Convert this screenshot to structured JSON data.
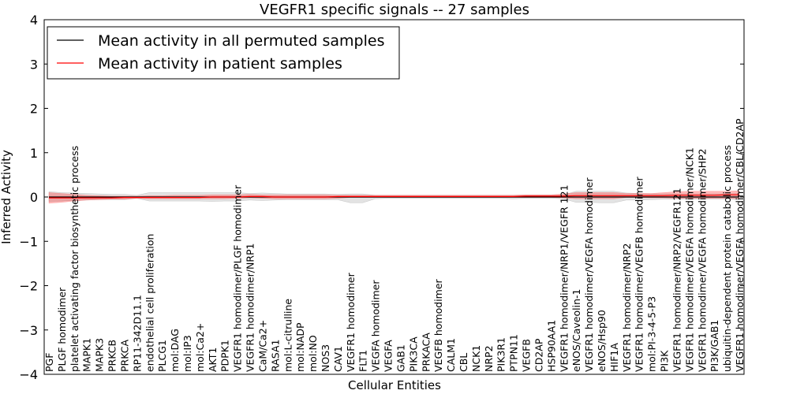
{
  "chart_data": {
    "type": "line",
    "title": "VEGFR1 specific signals -- 27 samples",
    "xlabel": "Cellular Entities",
    "ylabel": "Inferred Activity",
    "ylim": [
      -4,
      4
    ],
    "yticks": [
      -4,
      -3,
      -2,
      -1,
      0,
      1,
      2,
      3,
      4
    ],
    "ytick_labels": [
      "−4",
      "−3",
      "−2",
      "−1",
      "0",
      "1",
      "2",
      "3",
      "4"
    ],
    "grid": false,
    "legend_position": "top-left",
    "categories": [
      "PGF",
      "PLGF homodimer",
      "platelet activating factor biosynthetic process",
      "MAPK1",
      "MAPK3",
      "PRKCB",
      "PRKCA",
      "RP11-342D11.1",
      "endothelial cell proliferation",
      "PLCG1",
      "mol:DAG",
      "mol:IP3",
      "mol:Ca2+",
      "AKT1",
      "PDPK1",
      "VEGFR1 homodimer/PLGF homodimer",
      "VEGFR1 homodimer/NRP1",
      "CaM/Ca2+",
      "RASA1",
      "mol:L-citrulline",
      "mol:NADP",
      "mol:NO",
      "NOS3",
      "CAV1",
      "VEGFR1 homodimer",
      "FLT1",
      "VEGFA homodimer",
      "VEGFA",
      "GAB1",
      "PIK3CA",
      "PRKACA",
      "VEGFB homodimer",
      "CALM1",
      "CBL",
      "NCK1",
      "NRP2",
      "PIK3R1",
      "PTPN11",
      "VEGFB",
      "CD2AP",
      "HSP90AA1",
      "VEGFR1 homodimer/NRP1/VEGFR 121",
      "eNOS/Caveolin-1",
      "VEGFR1 homodimer/VEGFA homodimer",
      "eNOS/Hsp90",
      "HIF1A",
      "VEGFR1 homodimer/NRP2",
      "VEGFR1 homodimer/VEGFB homodimer",
      "mol:PI-3-4-5-P3",
      "PI3K",
      "VEGFR1 homodimer/NRP2/VEGFR121",
      "VEGFR1 homodimer/VEGFA homodimer/NCK1",
      "VEGFR1 homodimer/VEGFA homodimer/SHP2",
      "PI3K/GAB1",
      "ubiquitin-dependent protein catabolic process",
      "VEGFR1 homodimer/VEGFA homodimer/CBL/CD2AP"
    ],
    "series": [
      {
        "name": "Mean activity in all permuted samples",
        "color": "#000000",
        "values": [
          0,
          0,
          0,
          0,
          0,
          0,
          0,
          0,
          0,
          0,
          0,
          0,
          0,
          0,
          0,
          0,
          0,
          0,
          0,
          0,
          0,
          0,
          0,
          0,
          0,
          0,
          0,
          0,
          0,
          0,
          0,
          0,
          0,
          0,
          0,
          0,
          0,
          0,
          0,
          0,
          0,
          0,
          0,
          0,
          0,
          0,
          0,
          0,
          0,
          0,
          0,
          0,
          0,
          0,
          0,
          0
        ],
        "band_lower": [
          -0.1,
          -0.09,
          -0.08,
          -0.07,
          -0.06,
          -0.06,
          -0.06,
          -0.03,
          -0.09,
          -0.09,
          -0.09,
          -0.09,
          -0.09,
          -0.1,
          -0.09,
          -0.09,
          -0.07,
          -0.08,
          -0.07,
          -0.06,
          -0.06,
          -0.06,
          -0.06,
          -0.06,
          -0.13,
          -0.13,
          -0.04,
          -0.03,
          -0.03,
          -0.03,
          -0.03,
          -0.03,
          -0.03,
          -0.03,
          -0.03,
          -0.03,
          -0.03,
          -0.04,
          -0.03,
          -0.03,
          -0.03,
          -0.04,
          -0.12,
          -0.12,
          -0.13,
          -0.13,
          -0.07,
          -0.07,
          -0.06,
          -0.05,
          -0.05,
          -0.05,
          -0.05,
          -0.05,
          -0.05,
          -0.06
        ],
        "band_upper": [
          0.12,
          0.1,
          0.09,
          0.08,
          0.07,
          0.06,
          0.06,
          0.04,
          0.1,
          0.1,
          0.1,
          0.1,
          0.1,
          0.1,
          0.1,
          0.1,
          0.08,
          0.09,
          0.08,
          0.07,
          0.07,
          0.07,
          0.07,
          0.06,
          0.07,
          0.07,
          0.04,
          0.04,
          0.04,
          0.04,
          0.04,
          0.04,
          0.04,
          0.04,
          0.04,
          0.04,
          0.04,
          0.04,
          0.04,
          0.04,
          0.04,
          0.05,
          0.13,
          0.13,
          0.13,
          0.13,
          0.09,
          0.08,
          0.07,
          0.07,
          0.07,
          0.07,
          0.07,
          0.07,
          0.07,
          0.08
        ]
      },
      {
        "name": "Mean activity in patient samples",
        "color": "#ff0000",
        "values": [
          -0.02,
          -0.02,
          -0.02,
          -0.02,
          -0.02,
          -0.02,
          -0.01,
          -0.01,
          -0.01,
          -0.01,
          -0.01,
          -0.01,
          -0.01,
          0,
          0,
          0,
          0.01,
          0.01,
          0,
          0,
          0,
          0,
          0,
          0.01,
          0.01,
          0.01,
          0.01,
          0.01,
          0.01,
          0.01,
          0.01,
          0.01,
          0.01,
          0.01,
          0.01,
          0.01,
          0.01,
          0.01,
          0.02,
          0.02,
          0.02,
          0.02,
          0.03,
          0.03,
          0.03,
          0.03,
          0.03,
          0.03,
          0.03,
          0.03,
          0.04,
          0.04,
          0.04,
          0.04,
          0.05,
          0.05
        ],
        "band_lower": [
          -0.14,
          -0.12,
          -0.09,
          -0.07,
          -0.06,
          -0.05,
          -0.05,
          -0.03,
          -0.04,
          -0.04,
          -0.04,
          -0.04,
          -0.04,
          -0.04,
          -0.04,
          -0.03,
          -0.02,
          -0.03,
          -0.04,
          -0.04,
          -0.04,
          -0.04,
          -0.04,
          -0.03,
          -0.01,
          -0.01,
          -0.01,
          -0.01,
          -0.01,
          -0.01,
          -0.01,
          -0.01,
          -0.01,
          -0.01,
          -0.01,
          -0.01,
          -0.01,
          -0.01,
          -0.01,
          -0.01,
          -0.01,
          -0.02,
          -0.04,
          -0.04,
          -0.04,
          -0.04,
          -0.01,
          -0.01,
          -0.02,
          -0.02,
          -0.03,
          -0.03,
          -0.03,
          -0.03,
          -0.03,
          -0.04
        ],
        "band_upper": [
          0.1,
          0.08,
          0.06,
          0.04,
          0.03,
          0.02,
          0.02,
          0.02,
          0.03,
          0.03,
          0.04,
          0.04,
          0.04,
          0.05,
          0.05,
          0.05,
          0.06,
          0.05,
          0.05,
          0.05,
          0.05,
          0.05,
          0.05,
          0.04,
          0.04,
          0.04,
          0.04,
          0.04,
          0.04,
          0.04,
          0.04,
          0.04,
          0.04,
          0.04,
          0.04,
          0.04,
          0.04,
          0.04,
          0.05,
          0.05,
          0.05,
          0.07,
          0.1,
          0.1,
          0.1,
          0.1,
          0.08,
          0.08,
          0.08,
          0.1,
          0.12,
          0.13,
          0.13,
          0.13,
          0.13,
          0.14
        ]
      }
    ]
  }
}
